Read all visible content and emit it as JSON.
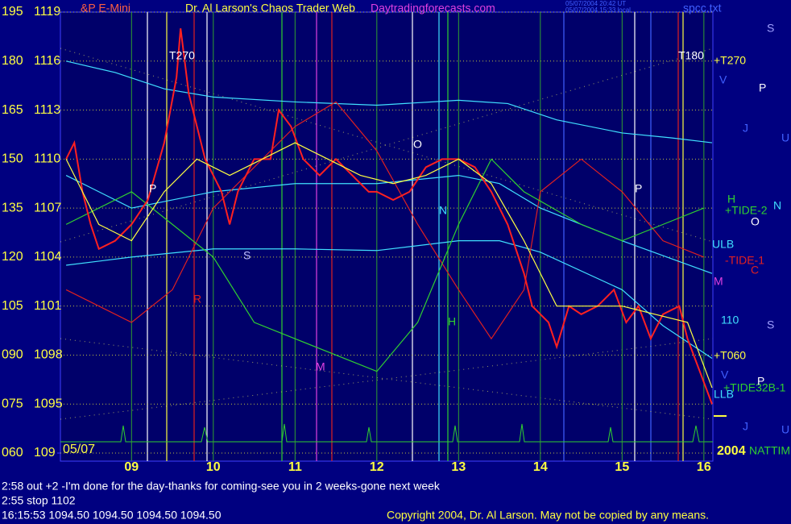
{
  "header": {
    "instrument": "&P E-Mini",
    "title": "Dr. Al Larson's Chaos Trader Web",
    "site": "Daytradingforecasts.com",
    "stamp": [
      "05/07/2004 20:42 UT",
      "05/07/2004 15:33 local"
    ],
    "file": "spcc.txt"
  },
  "chart_data": {
    "type": "line",
    "date_label": "05/07",
    "year_label": "2004",
    "xlim": [
      8.13,
      16.11
    ],
    "xticks": [
      {
        "value": 9,
        "label": "09"
      },
      10,
      11,
      12,
      13,
      14,
      15,
      16
    ],
    "ylim": [
      1092,
      1119
    ],
    "yticks": [
      1119,
      1116,
      1113,
      1110,
      1107,
      1104,
      1101,
      1098,
      1095,
      {
        "value": 1092,
        "label": "109"
      }
    ],
    "y2lim": [
      60,
      195
    ],
    "y2ticks": [
      195,
      180,
      165,
      150,
      135,
      120,
      105,
      {
        "value": 90,
        "label": "090"
      },
      {
        "value": 75,
        "label": "075"
      },
      {
        "value": 60,
        "label": "060"
      }
    ],
    "grid": true,
    "series": [
      {
        "color": "#40e0ff",
        "x": [
          8.2,
          8.8,
          9.4,
          10.0,
          11.0,
          12.0,
          13.0,
          13.6,
          14.2,
          15.0,
          15.6,
          16.1
        ],
        "values": [
          1116,
          1115.3,
          1114.3,
          1113.8,
          1113.5,
          1113.3,
          1113.6,
          1113.4,
          1112.4,
          1111.6,
          1111.3,
          1111
        ]
      },
      {
        "color": "#40e0ff",
        "x": [
          8.2,
          9.0,
          10.0,
          11.0,
          12.0,
          13.0,
          13.5,
          14.0,
          15.0,
          16.1
        ],
        "values": [
          1109,
          1107,
          1108,
          1108.5,
          1108.5,
          1109,
          1108.5,
          1107,
          1105,
          1103
        ]
      },
      {
        "color": "#40e0ff",
        "x": [
          8.2,
          9.0,
          10.0,
          11.0,
          12.0,
          13.0,
          13.5,
          14.0,
          15.0,
          15.5,
          16.1
        ],
        "values": [
          1103.5,
          1104,
          1104.5,
          1104.5,
          1104.4,
          1105,
          1105,
          1104.3,
          1102,
          1099.8,
          1097.8
        ]
      },
      {
        "color": "#e02020",
        "x": [
          8.2,
          9.0,
          9.5,
          10.0,
          11.0,
          11.5,
          12.0,
          12.5,
          13.0,
          13.4,
          13.8,
          14.0,
          14.5,
          15.0,
          15.5,
          16.0
        ],
        "values": [
          1102,
          1100,
          1102,
          1107,
          1112,
          1113.5,
          1110.5,
          1106,
          1102,
          1099,
          1102,
          1108,
          1110,
          1108,
          1105,
          1104
        ]
      },
      {
        "color": "#30d030",
        "x": [
          8.2,
          9.0,
          9.5,
          10.0,
          10.5,
          11.0,
          11.5,
          12.0,
          12.5,
          13.0,
          13.4,
          13.8,
          14.5,
          15.0,
          15.5,
          16.0
        ],
        "values": [
          1106,
          1108,
          1106,
          1104,
          1100,
          1099,
          1098,
          1097,
          1100,
          1106,
          1110,
          1108,
          1106,
          1105,
          1106,
          1107
        ]
      },
      {
        "color": "#ff2020",
        "x": [
          8.2,
          8.3,
          8.4,
          8.5,
          8.6,
          8.8,
          9.0,
          9.2,
          9.4,
          9.55,
          9.6,
          9.7,
          9.9,
          10.1,
          10.2,
          10.3,
          10.5,
          10.7,
          10.8,
          10.95,
          11.1,
          11.3,
          11.5,
          11.7,
          11.9,
          12.0,
          12.2,
          12.4,
          12.6,
          12.8,
          13.0,
          13.2,
          13.4,
          13.6,
          13.8,
          13.9,
          14.1,
          14.2,
          14.35,
          14.5,
          14.7,
          14.9,
          15.05,
          15.2,
          15.35,
          15.5,
          15.7,
          15.8,
          15.95,
          16.1
        ],
        "values": [
          1110,
          1111,
          1108,
          1106,
          1104.5,
          1105,
          1106,
          1107.5,
          1111,
          1115,
          1118,
          1114,
          1110,
          1108,
          1106,
          1108,
          1110,
          1110,
          1113,
          1112,
          1110,
          1109,
          1110,
          1109,
          1108,
          1108,
          1107.5,
          1108,
          1109.5,
          1110,
          1110,
          1109.5,
          1108,
          1106,
          1103,
          1101,
          1100,
          1098.5,
          1101,
          1100.5,
          1101,
          1102,
          1100,
          1101,
          1099,
          1100.5,
          1101,
          1099,
          1097,
          1095
        ]
      },
      {
        "color": "#ffff40",
        "x": [
          8.2,
          8.6,
          9.0,
          9.4,
          9.8,
          10.2,
          10.6,
          11.0,
          11.4,
          11.8,
          12.2,
          12.6,
          13.0,
          13.4,
          13.8,
          14.2,
          14.6,
          15.0,
          15.4,
          15.8,
          16.1
        ],
        "values": [
          1110,
          1106,
          1105,
          1108,
          1110,
          1109,
          1110,
          1111,
          1110,
          1109,
          1108.5,
          1109,
          1110,
          1108.5,
          1105,
          1101,
          1101,
          1101,
          1100.5,
          1100,
          1096
        ]
      }
    ],
    "annotations": [
      {
        "text": "T270",
        "color": "#ffffff"
      },
      {
        "text": "P",
        "color": "#ffffff"
      },
      {
        "text": "S",
        "color": "#c0c0ff"
      },
      {
        "text": "R",
        "color": "#e02020"
      },
      {
        "text": "M",
        "color": "#e040e0"
      },
      {
        "text": "O",
        "color": "#ffffff"
      },
      {
        "text": "N",
        "color": "#40e0ff"
      },
      {
        "text": "H",
        "color": "#30d030"
      },
      {
        "text": "P",
        "color": "#ffffff"
      },
      {
        "text": "T180",
        "color": "#ffffff"
      },
      {
        "text": "+T270",
        "color": "#ffff40"
      },
      {
        "text": "+T060",
        "color": "#ffff40"
      },
      {
        "text": "H",
        "color": "#30d030"
      },
      {
        "text": "+TIDE-2",
        "color": "#30d030"
      },
      {
        "text": "O",
        "color": "#ffffff"
      },
      {
        "text": "N",
        "color": "#40e0ff"
      },
      {
        "text": "ULB",
        "color": "#40e0ff"
      },
      {
        "text": "-TIDE-1",
        "color": "#e02020"
      },
      {
        "text": "C",
        "color": "#e02020"
      },
      {
        "text": "M",
        "color": "#e040e0"
      },
      {
        "text": "110",
        "color": "#40e0ff"
      },
      {
        "text": "S",
        "color": "#a0a0ff"
      },
      {
        "text": "+TIDE32B-1",
        "color": "#30d030"
      },
      {
        "text": "LLB",
        "color": "#40e0ff"
      },
      {
        "text": "P",
        "color": "#ffffff"
      },
      {
        "text": "S",
        "color": "#a0a0ff"
      },
      {
        "text": "P",
        "color": "#ffffff"
      },
      {
        "text": "J",
        "color": "#4060ff"
      },
      {
        "text": "U",
        "color": "#4060ff"
      },
      {
        "text": "V",
        "color": "#4060ff"
      },
      {
        "text": "V",
        "color": "#4060ff"
      },
      {
        "text": "J",
        "color": "#4060ff"
      },
      {
        "text": "U",
        "color": "#4060ff"
      },
      {
        "text": "NATTIM",
        "color": "#30d030"
      }
    ]
  },
  "footer": {
    "lines": [
      "2:58 out +2 -I'm done for the day-thanks for coming-see you in 2 weeks-gone next week",
      "2:55 stop 1102",
      "16:15:53  1094.50 1094.50 1094.50 1094.50"
    ],
    "copyright": "Copyright 2004, Dr. Al Larson. May not be copied by any means."
  }
}
